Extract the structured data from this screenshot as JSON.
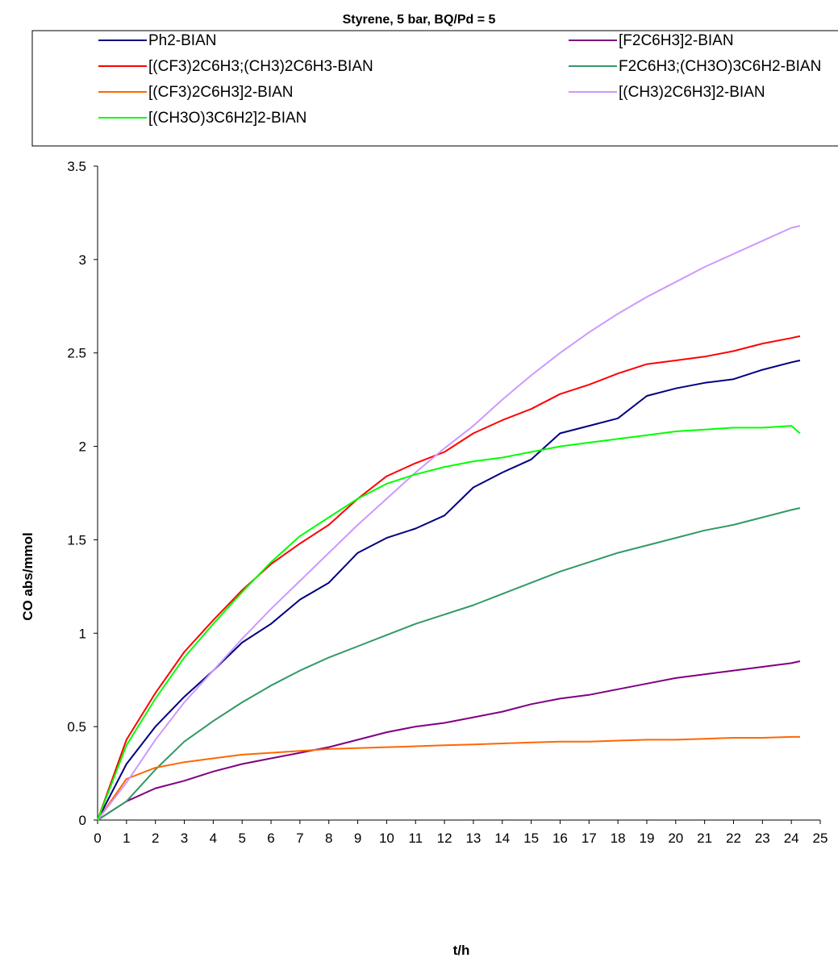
{
  "chart_data": {
    "type": "line",
    "title": "Styrene, 5 bar, BQ/Pd = 5",
    "xlabel": "t/h",
    "ylabel": "CO abs/mmol",
    "xlim": [
      0,
      25
    ],
    "ylim": [
      0,
      3.5
    ],
    "x_ticks": [
      "0",
      "1",
      "2",
      "3",
      "4",
      "5",
      "6",
      "7",
      "8",
      "9",
      "10",
      "11",
      "12",
      "13",
      "14",
      "15",
      "16",
      "17",
      "18",
      "19",
      "20",
      "21",
      "22",
      "23",
      "24",
      "25"
    ],
    "y_ticks": [
      "0",
      "0.5",
      "1",
      "1.5",
      "2",
      "2.5",
      "3",
      "3.5"
    ],
    "grid": false,
    "legend_position": "top",
    "series": [
      {
        "name": "Ph2-BIAN",
        "color": "#000080",
        "x": [
          0,
          1,
          2,
          3,
          4,
          5,
          6,
          7,
          8,
          9,
          10,
          11,
          12,
          13,
          14,
          15,
          16,
          17,
          18,
          19,
          20,
          21,
          22,
          23,
          24,
          24.3
        ],
        "y": [
          0,
          0.3,
          0.5,
          0.66,
          0.8,
          0.95,
          1.05,
          1.18,
          1.27,
          1.43,
          1.51,
          1.56,
          1.63,
          1.78,
          1.86,
          1.93,
          2.07,
          2.11,
          2.15,
          2.27,
          2.31,
          2.34,
          2.36,
          2.41,
          2.45,
          2.46
        ]
      },
      {
        "name": "[F2C6H3]2-BIAN",
        "color": "#800080",
        "x": [
          0,
          1,
          2,
          3,
          4,
          5,
          6,
          7,
          8,
          9,
          10,
          11,
          12,
          13,
          14,
          15,
          16,
          17,
          18,
          19,
          20,
          21,
          22,
          23,
          24,
          24.3
        ],
        "y": [
          0,
          0.1,
          0.17,
          0.21,
          0.26,
          0.3,
          0.33,
          0.36,
          0.39,
          0.43,
          0.47,
          0.5,
          0.52,
          0.55,
          0.58,
          0.62,
          0.65,
          0.67,
          0.7,
          0.73,
          0.76,
          0.78,
          0.8,
          0.82,
          0.84,
          0.85
        ]
      },
      {
        "name": "[(CF3)2C6H3;(CH3)2C6H3-BIAN",
        "color": "#ff0000",
        "x": [
          0,
          1,
          2,
          3,
          4,
          5,
          6,
          7,
          8,
          9,
          10,
          11,
          12,
          13,
          14,
          15,
          16,
          17,
          18,
          19,
          20,
          21,
          22,
          23,
          24,
          24.3
        ],
        "y": [
          0,
          0.43,
          0.68,
          0.9,
          1.07,
          1.23,
          1.37,
          1.48,
          1.58,
          1.72,
          1.84,
          1.91,
          1.97,
          2.07,
          2.14,
          2.2,
          2.28,
          2.33,
          2.39,
          2.44,
          2.46,
          2.48,
          2.51,
          2.55,
          2.58,
          2.59
        ]
      },
      {
        "name": "F2C6H3;(CH3O)3C6H2-BIAN",
        "color": "#339966",
        "x": [
          0,
          1,
          2,
          3,
          4,
          5,
          6,
          7,
          8,
          9,
          10,
          11,
          12,
          13,
          14,
          15,
          16,
          17,
          18,
          19,
          20,
          21,
          22,
          23,
          24,
          24.3
        ],
        "y": [
          0,
          0.1,
          0.27,
          0.42,
          0.53,
          0.63,
          0.72,
          0.8,
          0.87,
          0.93,
          0.99,
          1.05,
          1.1,
          1.15,
          1.21,
          1.27,
          1.33,
          1.38,
          1.43,
          1.47,
          1.51,
          1.55,
          1.58,
          1.62,
          1.66,
          1.67
        ]
      },
      {
        "name": "[(CF3)2C6H3]2-BIAN",
        "color": "#ff6600",
        "x": [
          0,
          1,
          2,
          3,
          4,
          5,
          6,
          7,
          8,
          9,
          10,
          11,
          12,
          13,
          14,
          15,
          16,
          17,
          18,
          19,
          20,
          21,
          22,
          23,
          24,
          24.3
        ],
        "y": [
          0,
          0.22,
          0.28,
          0.31,
          0.33,
          0.35,
          0.36,
          0.37,
          0.38,
          0.385,
          0.39,
          0.395,
          0.4,
          0.405,
          0.41,
          0.415,
          0.42,
          0.42,
          0.425,
          0.43,
          0.43,
          0.435,
          0.44,
          0.44,
          0.445,
          0.445
        ]
      },
      {
        "name": "[(CH3)2C6H3]2-BIAN",
        "color": "#cc99ff",
        "x": [
          0,
          1,
          2,
          3,
          4,
          5,
          6,
          7,
          8,
          9,
          10,
          11,
          12,
          13,
          14,
          15,
          16,
          17,
          18,
          19,
          20,
          21,
          22,
          23,
          24,
          24.3
        ],
        "y": [
          0,
          0.2,
          0.43,
          0.63,
          0.8,
          0.97,
          1.13,
          1.28,
          1.43,
          1.58,
          1.72,
          1.86,
          1.99,
          2.11,
          2.25,
          2.38,
          2.5,
          2.61,
          2.71,
          2.8,
          2.88,
          2.96,
          3.03,
          3.1,
          3.17,
          3.18
        ]
      },
      {
        "name": "[(CH3O)3C6H2]2-BIAN",
        "color": "#00ff00",
        "x": [
          0,
          1,
          2,
          3,
          4,
          5,
          6,
          7,
          8,
          9,
          10,
          11,
          12,
          13,
          14,
          15,
          16,
          17,
          18,
          19,
          20,
          21,
          22,
          23,
          24,
          24.3
        ],
        "y": [
          0,
          0.4,
          0.65,
          0.87,
          1.05,
          1.22,
          1.38,
          1.52,
          1.62,
          1.72,
          1.8,
          1.85,
          1.89,
          1.92,
          1.94,
          1.97,
          2.0,
          2.02,
          2.04,
          2.06,
          2.08,
          2.09,
          2.1,
          2.1,
          2.11,
          2.07
        ]
      }
    ]
  }
}
